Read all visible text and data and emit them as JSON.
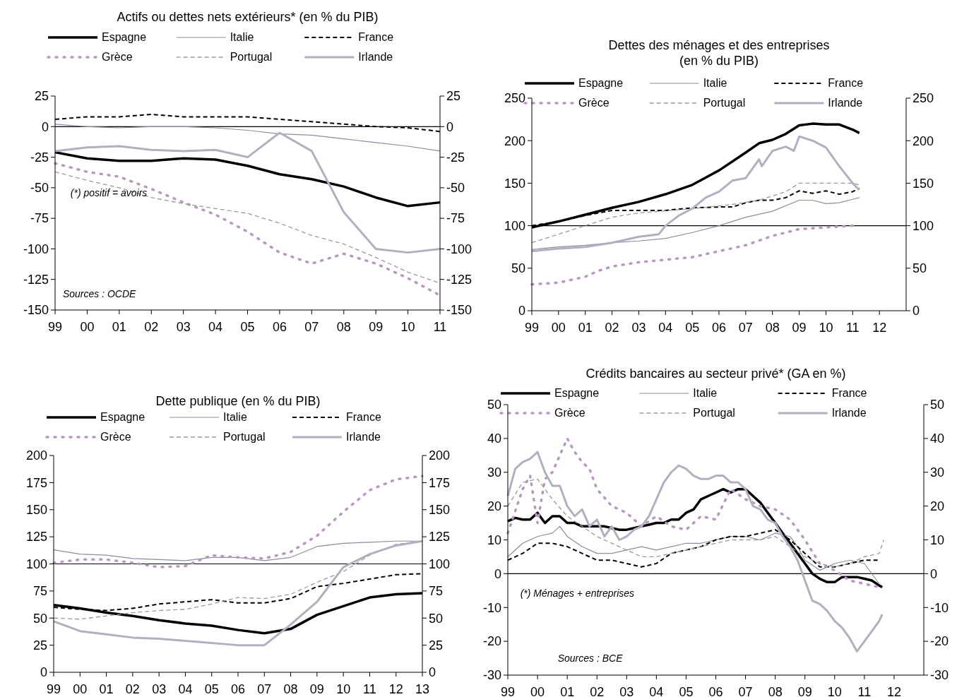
{
  "chart_data": [
    {
      "type": "line",
      "title": "Actifs ou dettes nets extérieurs* (en % du PIB)",
      "legend": "top",
      "xlim": [
        1999,
        2011
      ],
      "xticks": [
        {
          "value": 1999,
          "label": "99"
        },
        {
          "value": 2000,
          "label": "00"
        },
        {
          "value": 2001,
          "label": "01"
        },
        {
          "value": 2002,
          "label": "02"
        },
        {
          "value": 2003,
          "label": "03"
        },
        {
          "value": 2004,
          "label": "04"
        },
        {
          "value": 2005,
          "label": "05"
        },
        {
          "value": 2006,
          "label": "06"
        },
        {
          "value": 2007,
          "label": "07"
        },
        {
          "value": 2008,
          "label": "08"
        },
        {
          "value": 2009,
          "label": "09"
        },
        {
          "value": 2010,
          "label": "10"
        },
        {
          "value": 2011,
          "label": "11"
        }
      ],
      "ylim": [
        -150,
        25
      ],
      "yticks": [
        -150,
        -125,
        -100,
        -75,
        -50,
        -25,
        0,
        25
      ],
      "y2lim": [
        -150,
        25
      ],
      "y2ticks": [
        -150,
        -125,
        -100,
        -75,
        -50,
        -25,
        0,
        25
      ],
      "ref_lines": [
        {
          "axis": "y",
          "value": 0
        }
      ],
      "annotations": [
        "(*) positif = avoirs",
        "Sources : OCDE"
      ],
      "x": [
        1999,
        2000,
        2001,
        2002,
        2003,
        2004,
        2005,
        2006,
        2007,
        2008,
        2009,
        2010,
        2011
      ],
      "series": [
        {
          "name": "Espagne",
          "color": "#000000",
          "line_style": "solid",
          "values": [
            -21,
            -26,
            -28,
            -28,
            -26,
            -27,
            -32,
            -39,
            -43,
            -49,
            -58,
            -65,
            -62
          ]
        },
        {
          "name": "Italie",
          "color": "#8c8ca0",
          "line_style": "solid",
          "values": [
            2,
            0,
            -1,
            0,
            0,
            -1,
            -3,
            -6,
            -7,
            -10,
            -13,
            -16,
            -20
          ]
        },
        {
          "name": "France",
          "color": "#000000",
          "line_style": "dashed",
          "values": [
            6,
            8,
            8,
            10,
            8,
            8,
            8,
            6,
            4,
            2,
            0,
            -1,
            -4
          ]
        },
        {
          "name": "Grèce",
          "color": "#b898c0",
          "line_style": "dotted",
          "values": [
            -30,
            -37,
            -41,
            -51,
            -62,
            -72,
            -86,
            -103,
            -112,
            -104,
            -112,
            -124,
            -138
          ]
        },
        {
          "name": "Portugal",
          "color": "#9a9a9a",
          "line_style": "dashed",
          "values": [
            -37,
            -44,
            -50,
            -58,
            -63,
            -67,
            -71,
            -79,
            -89,
            -96,
            -107,
            -119,
            -128
          ]
        },
        {
          "name": "Irlande",
          "color": "#b0b0c0",
          "line_style": "solid",
          "values": [
            -20,
            -17,
            -16,
            -19,
            -20,
            -19,
            -25,
            -5,
            -20,
            -70,
            -100,
            -103,
            -100
          ]
        }
      ]
    },
    {
      "type": "line",
      "title": "Dettes des ménages et des entreprises (en % du PIB)",
      "legend": "top",
      "xlim": [
        1999,
        2013
      ],
      "xticks": [
        {
          "value": 1999,
          "label": "99"
        },
        {
          "value": 2000,
          "label": "00"
        },
        {
          "value": 2001,
          "label": "01"
        },
        {
          "value": 2002,
          "label": "02"
        },
        {
          "value": 2003,
          "label": "03"
        },
        {
          "value": 2004,
          "label": "04"
        },
        {
          "value": 2005,
          "label": "05"
        },
        {
          "value": 2006,
          "label": "06"
        },
        {
          "value": 2007,
          "label": "07"
        },
        {
          "value": 2008,
          "label": "08"
        },
        {
          "value": 2009,
          "label": "09"
        },
        {
          "value": 2010,
          "label": "10"
        },
        {
          "value": 2011,
          "label": "11"
        },
        {
          "value": 2012,
          "label": "12"
        }
      ],
      "ylim": [
        0,
        250
      ],
      "yticks": [
        0,
        50,
        100,
        150,
        200,
        250
      ],
      "y2lim": [
        0,
        250
      ],
      "y2ticks": [
        0,
        50,
        100,
        150,
        200,
        250
      ],
      "ref_lines": [
        {
          "axis": "y",
          "value": 100
        }
      ],
      "series": [
        {
          "name": "Espagne",
          "color": "#000000",
          "line_style": "solid",
          "x": [
            1999,
            2000,
            2001,
            2002,
            2003,
            2004,
            2005,
            2006,
            2007,
            2007.5,
            2008,
            2008.5,
            2009,
            2009.5,
            2010,
            2010.5,
            2011,
            2011.25
          ],
          "values": [
            98,
            105,
            113,
            121,
            128,
            137,
            148,
            165,
            186,
            197,
            201,
            208,
            218,
            220,
            219,
            219,
            213,
            209
          ]
        },
        {
          "name": "Italie",
          "color": "#8c8ca0",
          "line_style": "solid",
          "x": [
            1999,
            2000,
            2001,
            2002,
            2003,
            2004,
            2005,
            2006,
            2007,
            2008,
            2009,
            2009.5,
            2010,
            2010.5,
            2011,
            2011.25
          ],
          "values": [
            72,
            75,
            77,
            80,
            82,
            85,
            92,
            100,
            110,
            117,
            130,
            130,
            126,
            127,
            131,
            133
          ]
        },
        {
          "name": "France",
          "color": "#000000",
          "line_style": "dashed",
          "x": [
            1999,
            2000,
            2001,
            2002,
            2003,
            2004,
            2005,
            2006,
            2006.5,
            2007,
            2007.5,
            2008,
            2008.5,
            2009,
            2009.5,
            2010,
            2010.5,
            2011,
            2011.25
          ],
          "values": [
            100,
            105,
            112,
            118,
            118,
            118,
            121,
            122,
            122,
            127,
            130,
            130,
            133,
            141,
            138,
            141,
            137,
            140,
            144
          ]
        },
        {
          "name": "Grèce",
          "color": "#b898c0",
          "line_style": "dotted",
          "x": [
            1999,
            2000,
            2001,
            2001.5,
            2002,
            2003,
            2004,
            2005,
            2006,
            2007,
            2008,
            2009,
            2010,
            2011
          ],
          "values": [
            31,
            33,
            40,
            47,
            52,
            57,
            60,
            63,
            70,
            77,
            88,
            96,
            98,
            100
          ]
        },
        {
          "name": "Portugal",
          "color": "#9a9a9a",
          "line_style": "dashed",
          "x": [
            1999,
            2000,
            2001.5,
            2002,
            2003,
            2005,
            2006.5,
            2007.5,
            2008.5,
            2009,
            2010,
            2011,
            2011.25
          ],
          "values": [
            80,
            90,
            105,
            110,
            115,
            120,
            125,
            130,
            140,
            150,
            150,
            150,
            148
          ]
        },
        {
          "name": "Irlande",
          "color": "#b0b0c0",
          "line_style": "solid",
          "x": [
            1999,
            2000,
            2001,
            2002,
            2003,
            2003.75,
            2004,
            2004.5,
            2005,
            2005.5,
            2006,
            2006.5,
            2007,
            2007.5,
            2007.6,
            2008,
            2008.5,
            2008.8,
            2009,
            2009.5,
            2010,
            2010.5,
            2011,
            2011.25
          ],
          "values": [
            70,
            73,
            75,
            80,
            87,
            90,
            100,
            112,
            120,
            133,
            140,
            153,
            156,
            178,
            170,
            188,
            193,
            188,
            205,
            200,
            192,
            170,
            150,
            142
          ]
        }
      ]
    },
    {
      "type": "line",
      "title": "Dette publique (en % du PIB)",
      "legend": "top",
      "xlim": [
        1999,
        2013
      ],
      "xticks": [
        {
          "value": 1999,
          "label": "99"
        },
        {
          "value": 2000,
          "label": "00"
        },
        {
          "value": 2001,
          "label": "01"
        },
        {
          "value": 2002,
          "label": "02"
        },
        {
          "value": 2003,
          "label": "03"
        },
        {
          "value": 2004,
          "label": "04"
        },
        {
          "value": 2005,
          "label": "05"
        },
        {
          "value": 2006,
          "label": "06"
        },
        {
          "value": 2007,
          "label": "07"
        },
        {
          "value": 2008,
          "label": "08"
        },
        {
          "value": 2009,
          "label": "09"
        },
        {
          "value": 2010,
          "label": "10"
        },
        {
          "value": 2011,
          "label": "11"
        },
        {
          "value": 2012,
          "label": "12"
        },
        {
          "value": 2013,
          "label": "13"
        }
      ],
      "ylim": [
        0,
        200
      ],
      "yticks": [
        0,
        25,
        50,
        75,
        100,
        125,
        150,
        175,
        200
      ],
      "y2lim": [
        0,
        200
      ],
      "y2ticks": [
        0,
        25,
        50,
        75,
        100,
        125,
        150,
        175,
        200
      ],
      "ref_lines": [
        {
          "axis": "y",
          "value": 100
        }
      ],
      "x": [
        1999,
        2000,
        2001,
        2002,
        2003,
        2004,
        2005,
        2006,
        2007,
        2008,
        2009,
        2010,
        2011,
        2012,
        2013
      ],
      "series": [
        {
          "name": "Espagne",
          "color": "#000000",
          "line_style": "solid",
          "values": [
            62,
            59,
            55,
            52,
            48,
            45,
            43,
            39,
            36,
            40,
            53,
            61,
            69,
            72,
            73
          ]
        },
        {
          "name": "Italie",
          "color": "#8c8ca0",
          "line_style": "solid",
          "values": [
            113,
            109,
            108,
            105,
            104,
            103,
            106,
            106,
            103,
            106,
            116,
            119,
            120,
            121,
            121
          ]
        },
        {
          "name": "France",
          "color": "#000000",
          "line_style": "dashed",
          "values": [
            60,
            58,
            57,
            59,
            63,
            65,
            67,
            64,
            64,
            68,
            79,
            82,
            86,
            90,
            91
          ]
        },
        {
          "name": "Grèce",
          "color": "#b898c0",
          "line_style": "dotted",
          "values": [
            101,
            104,
            104,
            101,
            97,
            98,
            108,
            106,
            105,
            111,
            126,
            148,
            168,
            178,
            181
          ]
        },
        {
          "name": "Portugal",
          "color": "#9a9a9a",
          "line_style": "dashed",
          "values": [
            50,
            49,
            52,
            55,
            57,
            58,
            63,
            69,
            68,
            72,
            83,
            93,
            108,
            118,
            121
          ]
        },
        {
          "name": "Irlande",
          "color": "#b0b0c0",
          "line_style": "solid",
          "values": [
            47,
            38,
            35,
            32,
            31,
            29,
            27,
            25,
            25,
            44,
            65,
            97,
            109,
            117,
            121
          ]
        }
      ]
    },
    {
      "type": "line",
      "title": "Crédits bancaires au secteur privé* (GA en %)",
      "legend": "top",
      "xlim": [
        1999,
        2013
      ],
      "xticks": [
        {
          "value": 1999,
          "label": "99"
        },
        {
          "value": 2000,
          "label": "00"
        },
        {
          "value": 2001,
          "label": "01"
        },
        {
          "value": 2002,
          "label": "02"
        },
        {
          "value": 2003,
          "label": "03"
        },
        {
          "value": 2004,
          "label": "04"
        },
        {
          "value": 2005,
          "label": "05"
        },
        {
          "value": 2006,
          "label": "06"
        },
        {
          "value": 2007,
          "label": "07"
        },
        {
          "value": 2008,
          "label": "08"
        },
        {
          "value": 2009,
          "label": "09"
        },
        {
          "value": 2010,
          "label": "10"
        },
        {
          "value": 2011,
          "label": "11"
        },
        {
          "value": 2012,
          "label": "12"
        }
      ],
      "ylim": [
        -30,
        50
      ],
      "yticks": [
        -30,
        -20,
        -10,
        0,
        10,
        20,
        30,
        40,
        50
      ],
      "y2lim": [
        -30,
        50
      ],
      "y2ticks": [
        -30,
        -20,
        -10,
        0,
        10,
        20,
        30,
        40,
        50
      ],
      "ref_lines": [
        {
          "axis": "y",
          "value": 0
        }
      ],
      "annotations": [
        "(*) Ménages + entreprises",
        "Sources : BCE"
      ],
      "series": [
        {
          "name": "Espagne",
          "color": "#000000",
          "line_style": "solid",
          "x": [
            1999,
            1999.25,
            1999.5,
            1999.75,
            2000,
            2000.25,
            2000.5,
            2000.75,
            2001,
            2001.25,
            2001.5,
            2001.75,
            2002,
            2002.25,
            2002.5,
            2002.75,
            2003,
            2003.25,
            2003.5,
            2003.75,
            2004,
            2004.25,
            2004.5,
            2004.75,
            2005,
            2005.25,
            2005.5,
            2005.75,
            2006,
            2006.25,
            2006.5,
            2006.75,
            2007,
            2007.25,
            2007.5,
            2007.75,
            2008,
            2008.25,
            2008.5,
            2008.75,
            2009,
            2009.25,
            2009.5,
            2009.75,
            2010,
            2010.25,
            2010.5,
            2010.75,
            2011,
            2011.25,
            2011.5,
            2011.6
          ],
          "values": [
            15.5,
            16.5,
            16,
            16,
            18,
            15,
            17,
            17,
            15,
            15,
            14,
            14,
            14,
            14,
            13.5,
            13,
            13,
            13.5,
            14,
            14.5,
            15,
            15,
            16,
            16,
            18,
            19,
            22,
            23,
            24,
            25,
            24,
            25,
            25,
            23,
            21,
            18,
            15,
            12,
            9,
            6,
            3,
            0,
            -1.5,
            -2.5,
            -2.5,
            -1,
            -1,
            -1,
            -1.5,
            -2,
            -3.5,
            -4
          ]
        },
        {
          "name": "Italie",
          "color": "#8c8ca0",
          "line_style": "solid",
          "x": [
            1999,
            1999.5,
            2000,
            2000.5,
            2000.75,
            2001,
            2001.5,
            2002,
            2002.5,
            2003,
            2003.5,
            2004,
            2004.5,
            2005,
            2005.5,
            2006,
            2006.5,
            2007,
            2007.5,
            2008,
            2008.5,
            2008.75,
            2009,
            2009.5,
            2010,
            2010.5,
            2011,
            2011.5
          ],
          "values": [
            5,
            9,
            11,
            12,
            14,
            11,
            8,
            6,
            6,
            7,
            8,
            7,
            8,
            9,
            9,
            10,
            11,
            11,
            10,
            12,
            11,
            8,
            4,
            1,
            3,
            4,
            3,
            -3
          ]
        },
        {
          "name": "France",
          "color": "#000000",
          "line_style": "dashed",
          "x": [
            1999,
            1999.5,
            2000,
            2000.5,
            2001,
            2001.5,
            2002,
            2002.5,
            2003,
            2003.5,
            2004,
            2004.5,
            2005,
            2005.5,
            2006,
            2006.5,
            2007,
            2007.5,
            2008,
            2008.5,
            2009,
            2009.5,
            2010,
            2010.5,
            2011,
            2011.5
          ],
          "values": [
            4,
            6,
            9,
            9,
            8,
            6,
            4,
            4,
            3,
            2,
            3,
            6,
            7,
            8,
            10,
            11,
            11,
            12,
            13,
            10,
            6,
            2,
            2,
            3,
            4,
            4
          ]
        },
        {
          "name": "Grèce",
          "color": "#b898c0",
          "line_style": "dotted",
          "x": [
            1999,
            1999.5,
            1999.75,
            2000,
            2000.25,
            2000.5,
            2001,
            2001.25,
            2001.5,
            2001.75,
            2002,
            2002.5,
            2003,
            2003.5,
            2004,
            2004.5,
            2005,
            2005.5,
            2006,
            2006.5,
            2007,
            2007.5,
            2008,
            2008.5,
            2009,
            2009.5,
            2010,
            2010.5,
            2011,
            2011.5
          ],
          "values": [
            12,
            25,
            29,
            15,
            28,
            30,
            40,
            36,
            33,
            31,
            25,
            20,
            18,
            14,
            17,
            14,
            13,
            17,
            16,
            25,
            22,
            20,
            19,
            16,
            10,
            3,
            1,
            -2,
            -3,
            -4
          ]
        },
        {
          "name": "Portugal",
          "color": "#9a9a9a",
          "line_style": "dashed",
          "x": [
            1999,
            1999.5,
            2000,
            2000.5,
            2001,
            2001.5,
            2002,
            2002.5,
            2003,
            2003.5,
            2004,
            2004.5,
            2005,
            2005.5,
            2006,
            2006.5,
            2007,
            2007.5,
            2008,
            2008.5,
            2009,
            2009.5,
            2010,
            2010.5,
            2011,
            2011.5,
            2011.65
          ],
          "values": [
            20,
            27,
            28,
            22,
            17,
            14,
            11,
            9,
            7,
            5,
            5,
            6,
            7,
            8,
            9,
            10,
            10,
            10,
            11,
            8,
            5,
            3,
            2,
            3,
            5,
            6,
            10
          ]
        },
        {
          "name": "Irlande",
          "color": "#b0b0c0",
          "line_style": "solid",
          "x": [
            1999,
            1999.25,
            1999.5,
            1999.75,
            2000,
            2000.25,
            2000.5,
            2000.75,
            2001,
            2001.25,
            2001.5,
            2001.75,
            2002,
            2002.25,
            2002.5,
            2002.75,
            2003,
            2003.25,
            2003.5,
            2003.75,
            2004,
            2004.25,
            2004.5,
            2004.75,
            2005,
            2005.25,
            2005.5,
            2005.75,
            2006,
            2006.25,
            2006.5,
            2006.75,
            2007,
            2007.25,
            2007.5,
            2007.75,
            2008,
            2008.25,
            2008.5,
            2008.75,
            2009,
            2009.25,
            2009.5,
            2009.75,
            2010,
            2010.25,
            2010.5,
            2010.75,
            2011,
            2011.25,
            2011.5,
            2011.6
          ],
          "values": [
            23,
            31,
            33,
            34,
            36,
            30,
            26,
            26,
            20,
            17,
            19,
            14,
            16,
            11,
            14,
            10,
            11,
            13,
            14,
            17,
            22,
            27,
            30,
            32,
            31,
            29,
            28,
            28,
            29,
            29,
            27,
            27,
            25,
            20,
            19,
            16,
            15,
            11,
            8,
            4,
            -2,
            -8,
            -9,
            -11,
            -14,
            -16,
            -19,
            -23,
            -20,
            -17,
            -14,
            -12
          ]
        }
      ]
    }
  ]
}
